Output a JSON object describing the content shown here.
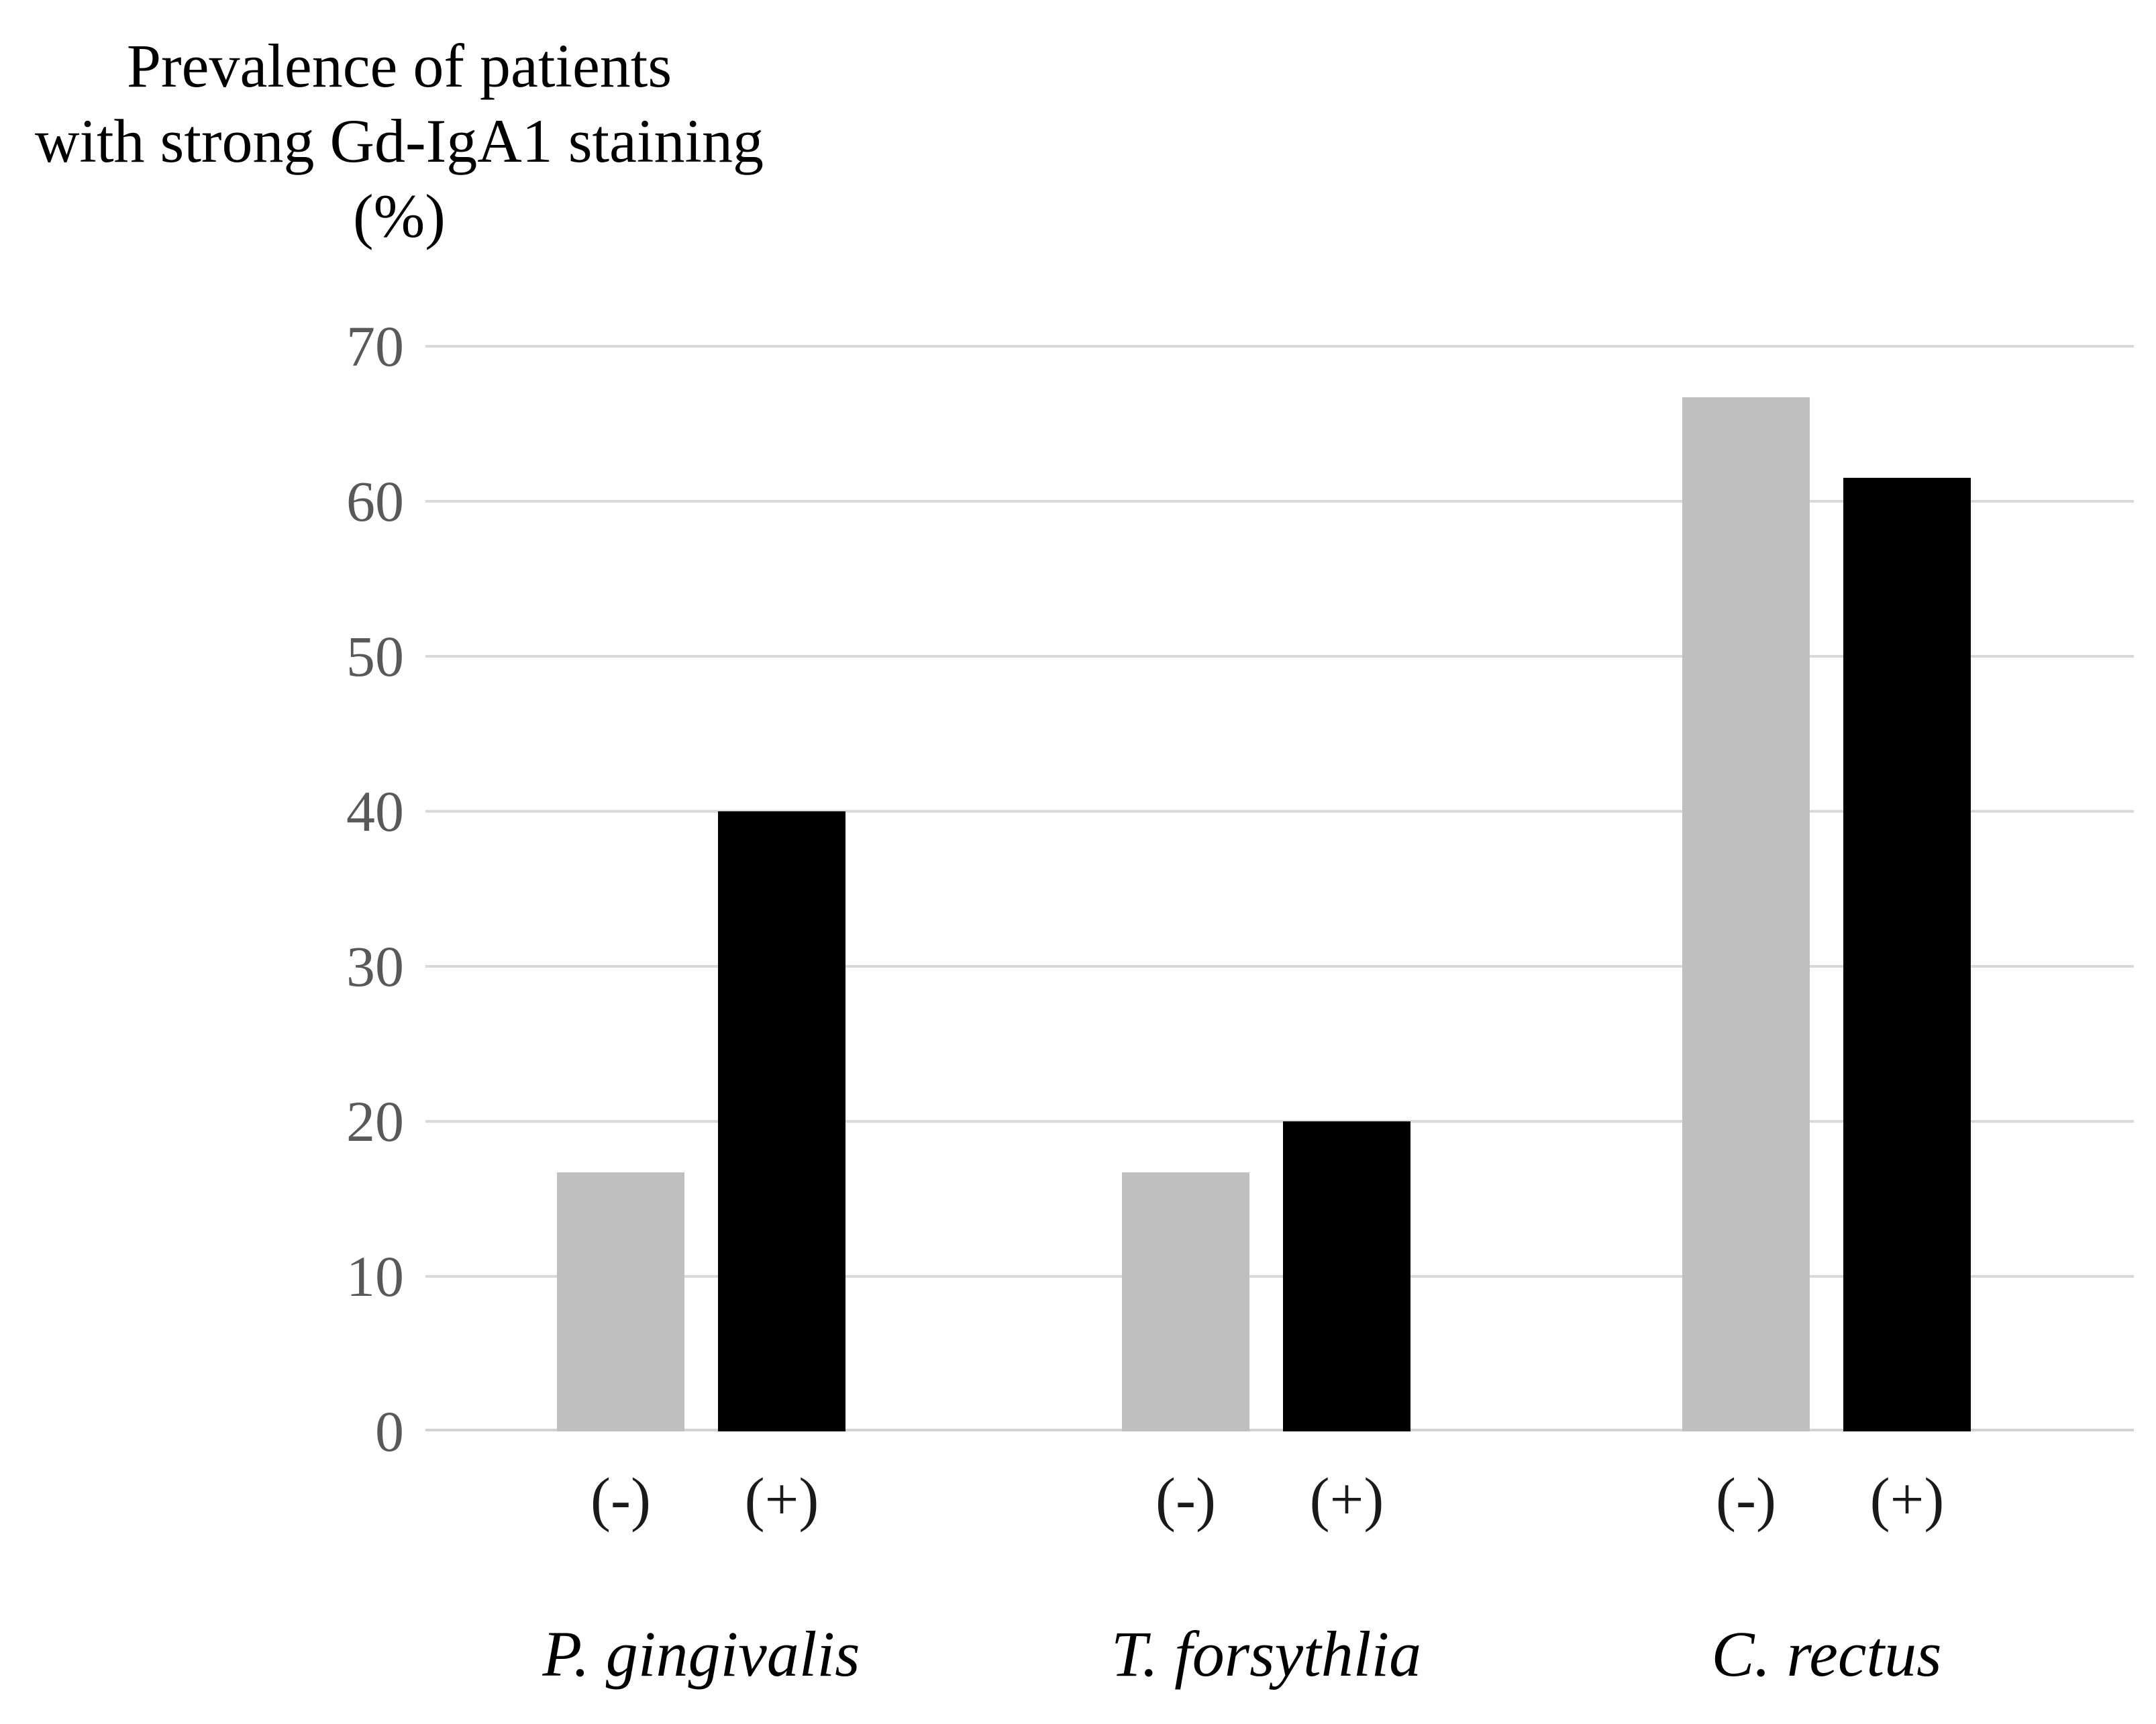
{
  "figure": {
    "background": "#ffffff"
  },
  "chart_data": {
    "type": "bar",
    "title": "Prevalence of patients with strong Gd-IgA1 staining (%)",
    "title_lines": [
      "Prevalence of patients",
      "with strong Gd-IgA1 staining",
      "(%)"
    ],
    "categories": [
      "P. gingivalis",
      "T. forsythlia",
      "C. rectus"
    ],
    "bar_labels": [
      "(-)",
      "(+)"
    ],
    "series": [
      {
        "name": "(-)",
        "color": "#bfbfbf",
        "values": [
          16.7,
          16.7,
          66.7
        ]
      },
      {
        "name": "(+)",
        "color": "#000000",
        "values": [
          40,
          20,
          61.5
        ]
      }
    ],
    "xlabel": "",
    "ylabel": "",
    "ylim": [
      0,
      70
    ],
    "yticks": [
      0,
      10,
      20,
      30,
      40,
      50,
      60,
      70
    ],
    "grid": true,
    "gridline_color": "#d9d9d9",
    "axis_line_color": "#d2d2d2",
    "tick_label_color": "#595959",
    "category_label_style": "italic",
    "legend_position": "none"
  }
}
